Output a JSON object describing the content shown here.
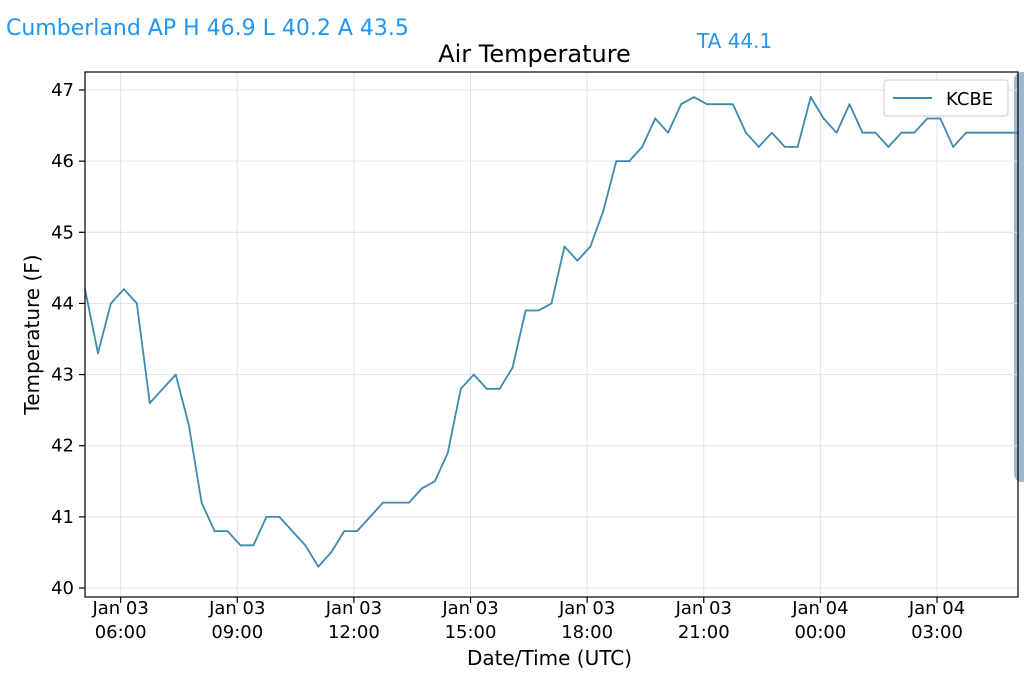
{
  "header": {
    "station_summary": "Cumberland AP H 46.9 L 40.2 A 43.5",
    "ta_value": "TA 44.1"
  },
  "colors": {
    "header_text": "#2196f3",
    "series_line": "#3d8ab0",
    "grid": "#e3e3e3",
    "scroll_handle": "#9fb8cf"
  },
  "chart_data": {
    "type": "line",
    "title": "Air Temperature",
    "xlabel": "Date/Time (UTC)",
    "ylabel": "Temperature (F)",
    "ylim": [
      40,
      47
    ],
    "xlim": [
      "2024-01-03T05:05",
      "2024-01-04T05:05"
    ],
    "grid": true,
    "legend_position": "top-right",
    "y_ticks": [
      40,
      41,
      42,
      43,
      44,
      45,
      46,
      47
    ],
    "x_ticks": [
      {
        "value": "2024-01-03T06:00",
        "date_label": "Jan 03",
        "time_label": "06:00"
      },
      {
        "value": "2024-01-03T09:00",
        "date_label": "Jan 03",
        "time_label": "09:00"
      },
      {
        "value": "2024-01-03T12:00",
        "date_label": "Jan 03",
        "time_label": "12:00"
      },
      {
        "value": "2024-01-03T15:00",
        "date_label": "Jan 03",
        "time_label": "15:00"
      },
      {
        "value": "2024-01-03T18:00",
        "date_label": "Jan 03",
        "time_label": "18:00"
      },
      {
        "value": "2024-01-03T21:00",
        "date_label": "Jan 03",
        "time_label": "21:00"
      },
      {
        "value": "2024-01-04T00:00",
        "date_label": "Jan 04",
        "time_label": "00:00"
      },
      {
        "value": "2024-01-04T03:00",
        "date_label": "Jan 04",
        "time_label": "03:00"
      }
    ],
    "series": [
      {
        "name": "KCBE",
        "x": [
          "2024-01-03T05:05",
          "2024-01-03T05:25",
          "2024-01-03T05:45",
          "2024-01-03T06:05",
          "2024-01-03T06:25",
          "2024-01-03T06:45",
          "2024-01-03T07:05",
          "2024-01-03T07:25",
          "2024-01-03T07:45",
          "2024-01-03T08:05",
          "2024-01-03T08:25",
          "2024-01-03T08:45",
          "2024-01-03T09:05",
          "2024-01-03T09:25",
          "2024-01-03T09:45",
          "2024-01-03T10:05",
          "2024-01-03T10:25",
          "2024-01-03T10:45",
          "2024-01-03T11:05",
          "2024-01-03T11:25",
          "2024-01-03T11:45",
          "2024-01-03T12:05",
          "2024-01-03T12:25",
          "2024-01-03T12:45",
          "2024-01-03T13:05",
          "2024-01-03T13:25",
          "2024-01-03T13:45",
          "2024-01-03T14:05",
          "2024-01-03T14:25",
          "2024-01-03T14:45",
          "2024-01-03T15:05",
          "2024-01-03T15:25",
          "2024-01-03T15:45",
          "2024-01-03T16:05",
          "2024-01-03T16:25",
          "2024-01-03T16:45",
          "2024-01-03T17:05",
          "2024-01-03T17:25",
          "2024-01-03T17:45",
          "2024-01-03T18:05",
          "2024-01-03T18:25",
          "2024-01-03T18:45",
          "2024-01-03T19:05",
          "2024-01-03T19:25",
          "2024-01-03T19:45",
          "2024-01-03T20:05",
          "2024-01-03T20:25",
          "2024-01-03T20:45",
          "2024-01-03T21:05",
          "2024-01-03T21:25",
          "2024-01-03T21:45",
          "2024-01-03T22:05",
          "2024-01-03T22:25",
          "2024-01-03T22:45",
          "2024-01-03T23:05",
          "2024-01-03T23:25",
          "2024-01-03T23:45",
          "2024-01-04T00:05",
          "2024-01-04T00:25",
          "2024-01-04T00:45",
          "2024-01-04T01:05",
          "2024-01-04T01:25",
          "2024-01-04T01:45",
          "2024-01-04T02:05",
          "2024-01-04T02:25",
          "2024-01-04T02:45",
          "2024-01-04T03:05",
          "2024-01-04T03:25",
          "2024-01-04T03:45",
          "2024-01-04T04:05",
          "2024-01-04T04:25",
          "2024-01-04T04:45",
          "2024-01-04T05:05"
        ],
        "y": [
          44.2,
          43.3,
          44.0,
          44.2,
          44.0,
          42.6,
          42.8,
          43.0,
          42.3,
          41.2,
          40.8,
          40.8,
          40.6,
          40.6,
          41.0,
          41.0,
          40.8,
          40.6,
          40.3,
          40.5,
          40.8,
          40.8,
          41.0,
          41.2,
          41.2,
          41.2,
          41.4,
          41.5,
          41.9,
          42.8,
          43.0,
          42.8,
          42.8,
          43.1,
          43.9,
          43.9,
          44.0,
          44.8,
          44.6,
          44.8,
          45.3,
          46.0,
          46.0,
          46.2,
          46.6,
          46.4,
          46.8,
          46.9,
          46.8,
          46.8,
          46.8,
          46.4,
          46.2,
          46.4,
          46.2,
          46.2,
          46.9,
          46.6,
          46.4,
          46.8,
          46.4,
          46.4,
          46.2,
          46.4,
          46.4,
          46.6,
          46.6,
          46.2,
          46.4,
          46.4,
          46.4,
          46.4,
          46.4
        ]
      }
    ]
  }
}
